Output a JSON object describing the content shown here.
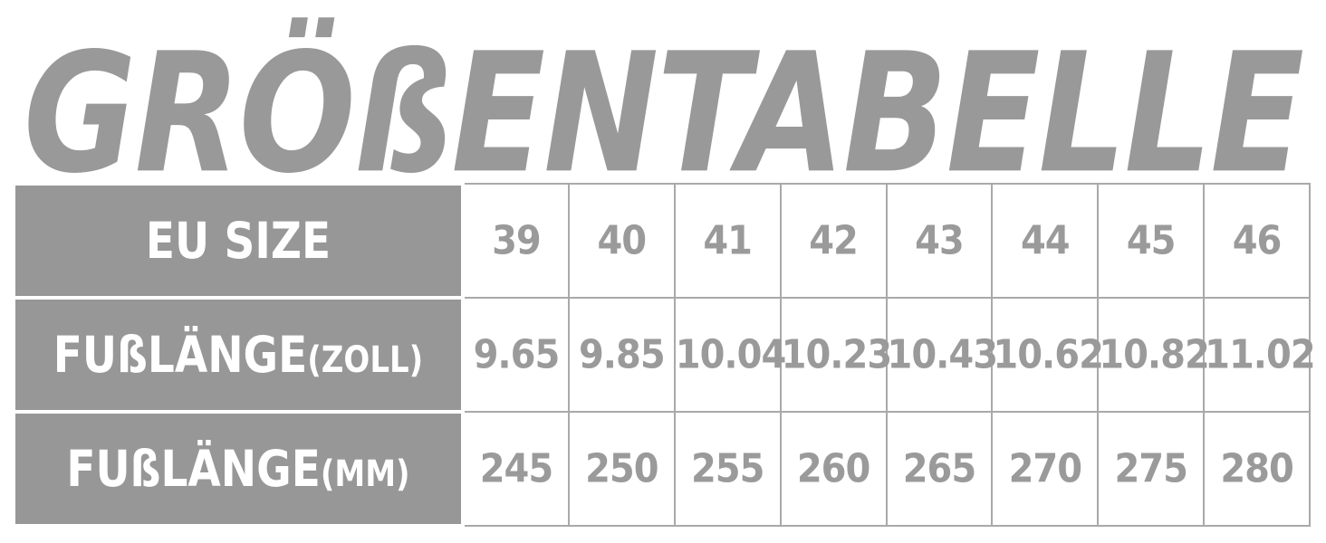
{
  "title": "GRÖßENTABELLE",
  "colors": {
    "title_gray": "#999999",
    "header_bg": "#979797",
    "header_text": "#ffffff",
    "cell_text": "#9a9a9a",
    "cell_border": "#a9a9a9",
    "background": "#ffffff"
  },
  "table": {
    "rows": [
      {
        "header": {
          "main": "EU SIZE",
          "suffix": ""
        },
        "values": [
          "39",
          "40",
          "41",
          "42",
          "43",
          "44",
          "45",
          "46"
        ]
      },
      {
        "header": {
          "main": "FUßLÄNGE",
          "suffix": "(ZOLL)"
        },
        "values": [
          "9.65",
          "9.85",
          "10.04",
          "10.23",
          "10.43",
          "10.62",
          "10.82",
          "11.02"
        ]
      },
      {
        "header": {
          "main": "FUßLÄNGE",
          "suffix": "(MM)"
        },
        "values": [
          "245",
          "250",
          "255",
          "260",
          "265",
          "270",
          "275",
          "280"
        ]
      }
    ]
  },
  "chart_data": {
    "type": "table",
    "title": "GRÖßENTABELLE",
    "row_labels": [
      "EU SIZE",
      "FUßLÄNGE(ZOLL)",
      "FUßLÄNGE(MM)"
    ],
    "rows": [
      {
        "label": "EU SIZE",
        "values": [
          39,
          40,
          41,
          42,
          43,
          44,
          45,
          46
        ]
      },
      {
        "label": "FUßLÄNGE(ZOLL)",
        "values": [
          9.65,
          9.85,
          10.04,
          10.23,
          10.43,
          10.62,
          10.82,
          11.02
        ]
      },
      {
        "label": "FUßLÄNGE(MM)",
        "values": [
          245,
          250,
          255,
          260,
          265,
          270,
          275,
          280
        ]
      }
    ],
    "layout_hints": {
      "header_column": "left",
      "grid": true
    }
  }
}
